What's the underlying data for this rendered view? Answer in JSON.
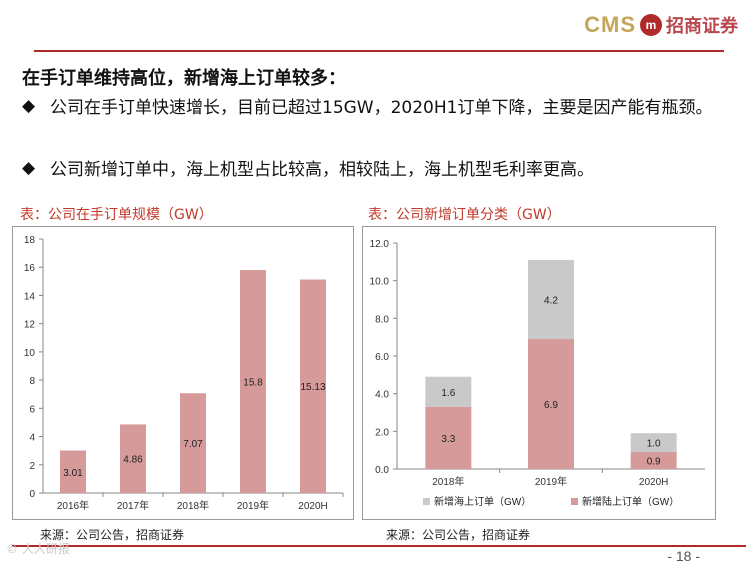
{
  "brand": {
    "cms": "CMS",
    "logo": "m",
    "name_cn": "招商证券"
  },
  "heading": "在手订单维持高位，新增海上订单较多：",
  "bullets": [
    {
      "mark": "◆",
      "text": "公司在手订单快速增长，目前已超过15GW，2020H1订单下降，主要是因产能有瓶颈。"
    },
    {
      "mark": "◆",
      "text": "公司新增订单中，海上机型占比较高，相较陆上，海上机型毛利率更高。"
    }
  ],
  "chart1": {
    "caption": "表：公司在手订单规模（GW）",
    "source": "来源：公司公告，招商证券"
  },
  "chart2": {
    "caption": "表：公司新增订单分类（GW）",
    "source": "来源：公司公告，招商证券"
  },
  "page_number": "- 18 -",
  "watermark": "© 人人研报",
  "colors": {
    "bar": "#d69a9a",
    "offshore": "#c9c9c9",
    "accent": "#b02a2a"
  },
  "chart_data": [
    {
      "type": "bar",
      "title": "表：公司在手订单规模（GW）",
      "categories": [
        "2016年",
        "2017年",
        "2018年",
        "2019年",
        "2020H"
      ],
      "values": [
        3.01,
        4.86,
        7.07,
        15.8,
        15.13
      ],
      "value_labels": [
        "3.01",
        "4.86",
        "7.07",
        "15.8",
        "15.13"
      ],
      "yticks": [
        "0",
        "2",
        "4",
        "6",
        "8",
        "10",
        "12",
        "14",
        "16",
        "18"
      ],
      "ylim": [
        0,
        18
      ],
      "xlabel": "",
      "ylabel": "",
      "grid": false
    },
    {
      "type": "bar",
      "stacked": true,
      "title": "表：公司新增订单分类（GW）",
      "categories": [
        "2018年",
        "2019年",
        "2020H"
      ],
      "series": [
        {
          "name": "新增陆上订单（GW）",
          "values": [
            3.3,
            6.9,
            0.9
          ],
          "labels": [
            "3.3",
            "6.9",
            "0.9"
          ]
        },
        {
          "name": "新增海上订单（GW）",
          "values": [
            1.6,
            4.2,
            1.0
          ],
          "labels": [
            "1.6",
            "4.2",
            "1.0"
          ]
        }
      ],
      "yticks": [
        "0.0",
        "2.0",
        "4.0",
        "6.0",
        "8.0",
        "10.0",
        "12.0"
      ],
      "ylim": [
        0,
        12
      ],
      "legend": "bottom",
      "grid": false
    }
  ]
}
